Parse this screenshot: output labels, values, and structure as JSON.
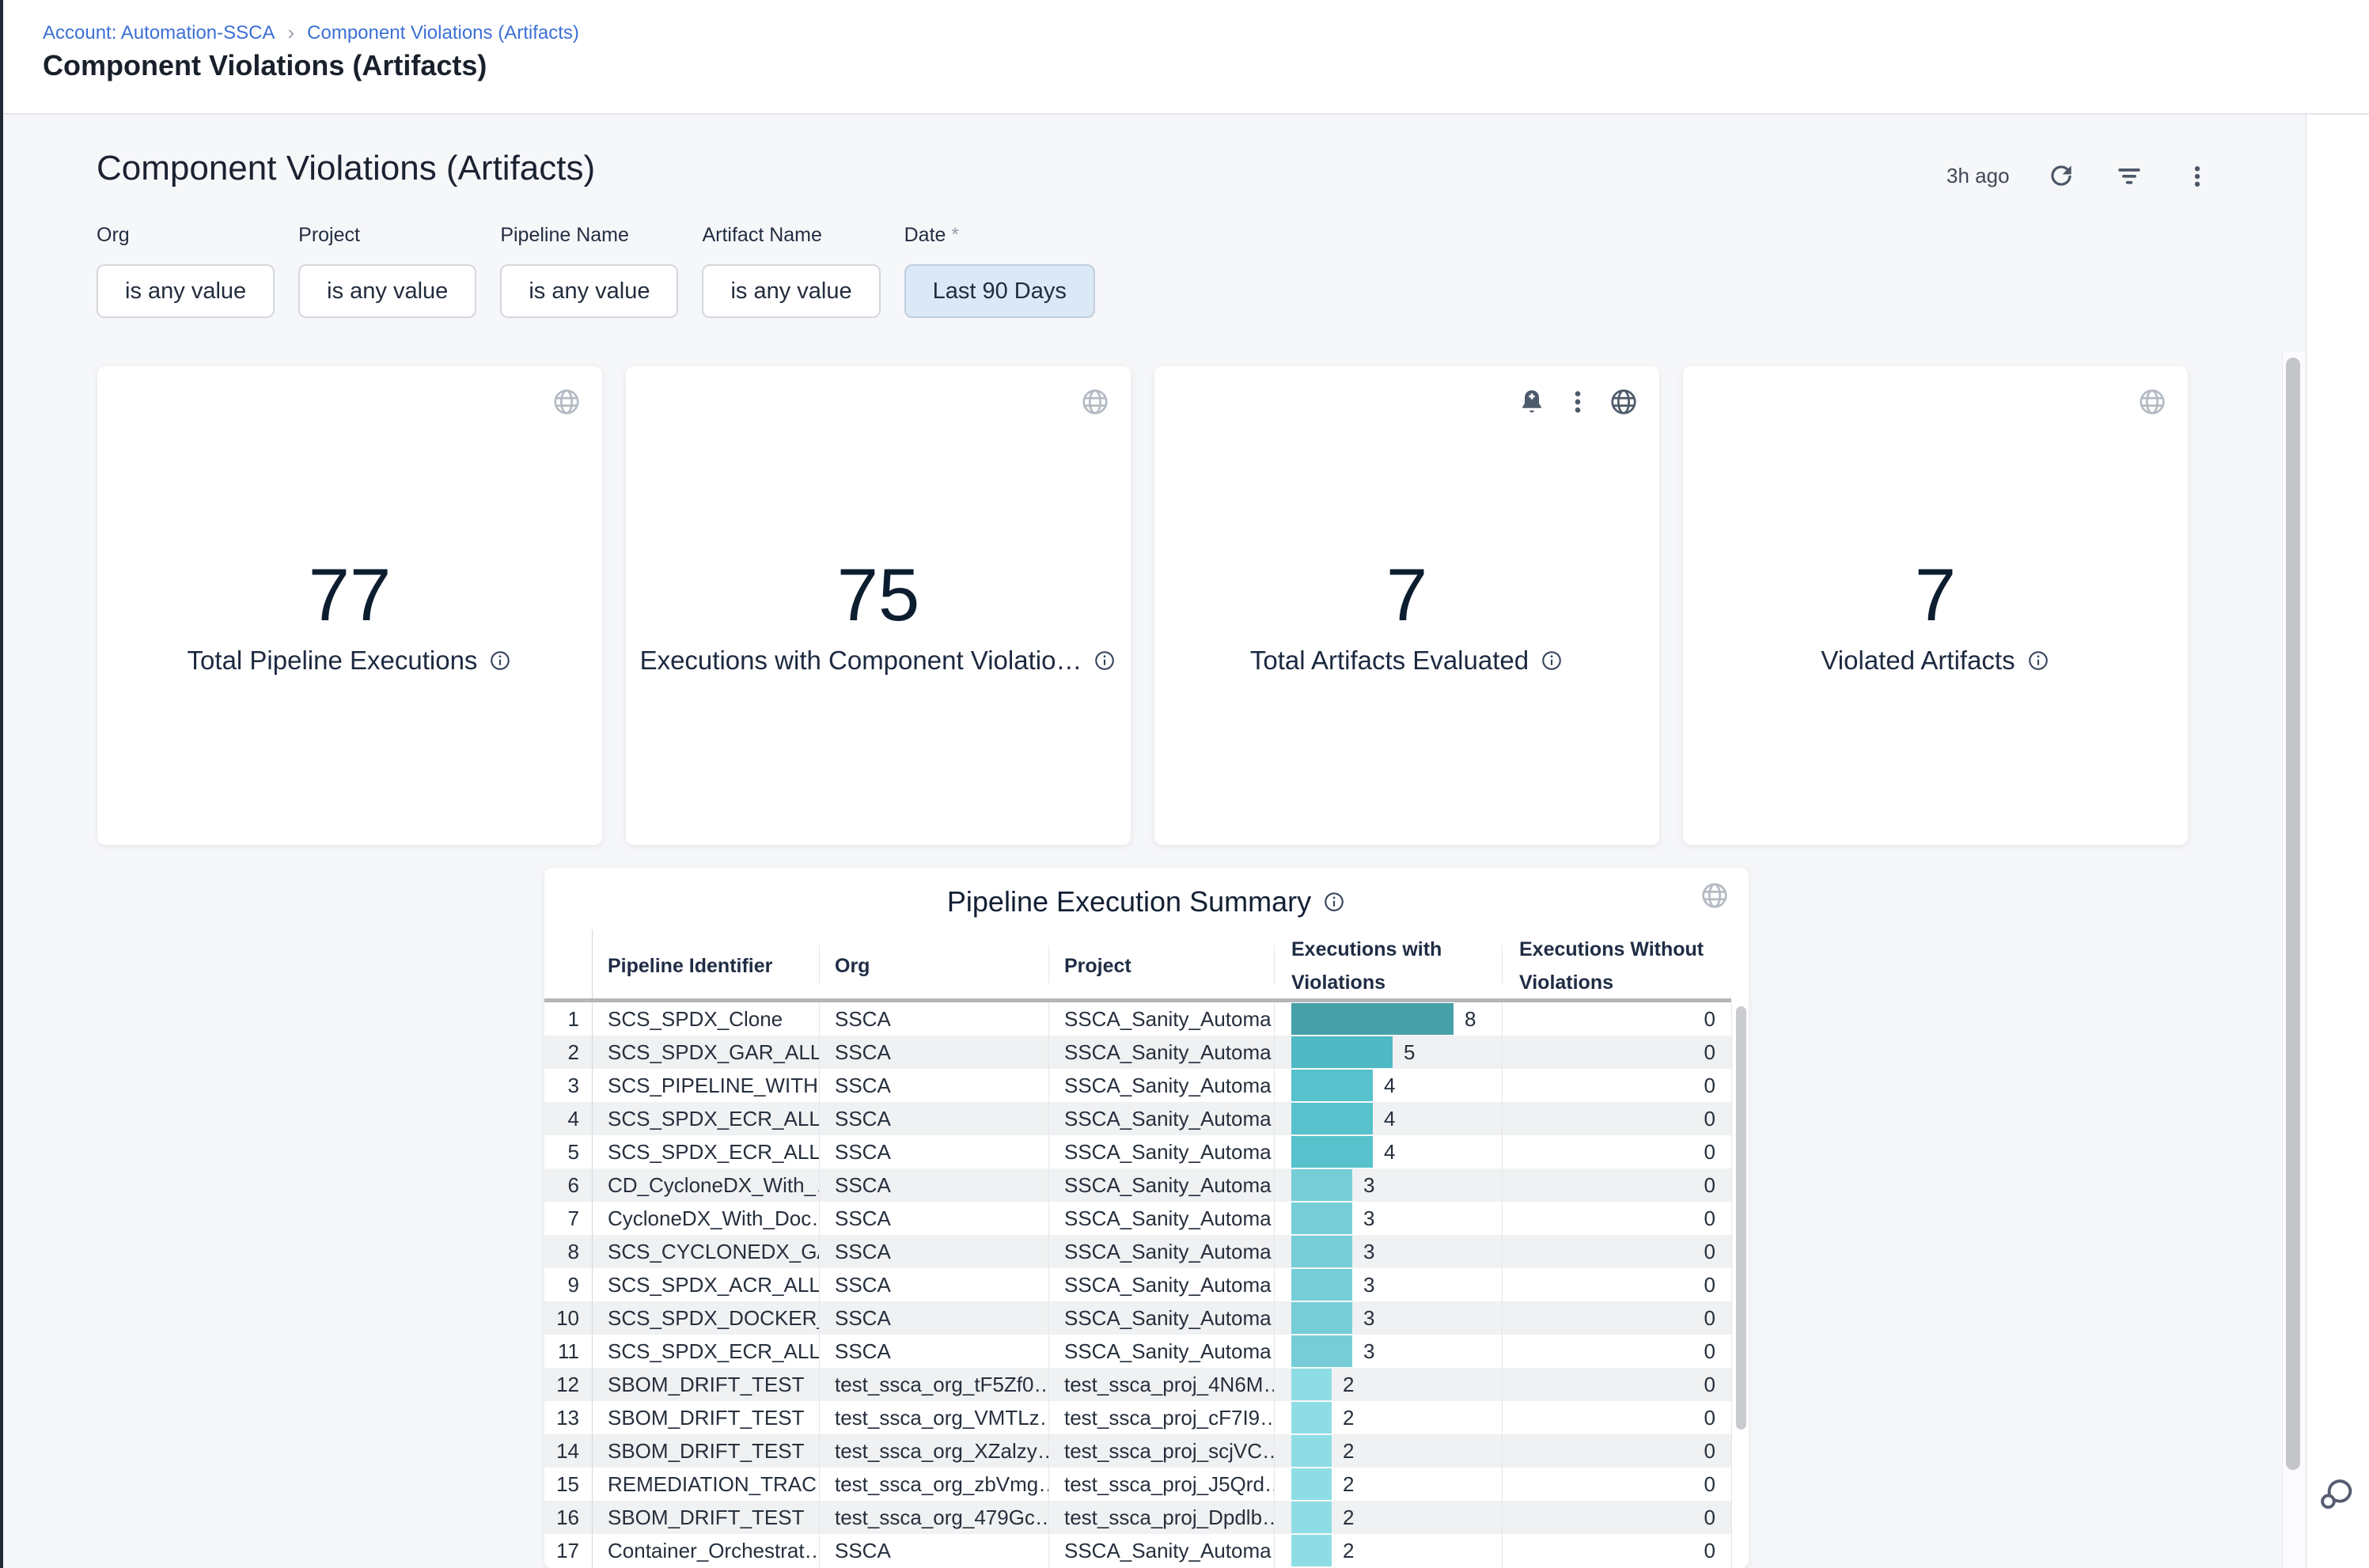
{
  "breadcrumb": {
    "account": "Account: Automation-SSCA",
    "page": "Component Violations (Artifacts)"
  },
  "page_title": "Component Violations (Artifacts)",
  "dashboard": {
    "title": "Component Violations (Artifacts)",
    "last_refreshed": "3h ago",
    "filters": [
      {
        "label": "Org",
        "value": "is any value",
        "required": false,
        "active": false
      },
      {
        "label": "Project",
        "value": "is any value",
        "required": false,
        "active": false
      },
      {
        "label": "Pipeline Name",
        "value": "is any value",
        "required": false,
        "active": false
      },
      {
        "label": "Artifact Name",
        "value": "is any value",
        "required": false,
        "active": false
      },
      {
        "label": "Date",
        "value": "Last 90 Days",
        "required": true,
        "active": true
      }
    ],
    "kpis": [
      {
        "value": "77",
        "label": "Total Pipeline Executions",
        "extra_icons": false
      },
      {
        "value": "75",
        "label": "Executions with Component Violatio…",
        "extra_icons": false
      },
      {
        "value": "7",
        "label": "Total Artifacts Evaluated",
        "extra_icons": true
      },
      {
        "value": "7",
        "label": "Violated Artifacts",
        "extra_icons": false
      }
    ]
  },
  "table": {
    "title": "Pipeline Execution Summary",
    "columns": [
      "Pipeline Identifier",
      "Org",
      "Project",
      "Executions with Violations",
      "Executions Without Violations"
    ],
    "bar_colors": {
      "8": "#46a0a8",
      "5": "#4fb9c4",
      "4": "#57c2cc",
      "3": "#76cdd7",
      "2": "#8fdde4"
    },
    "bar_max": 8,
    "bar_max_width": 205,
    "rows": [
      {
        "pipeline": "SCS_SPDX_Clone",
        "org": "SSCA",
        "project": "SSCA_Sanity_Automa…",
        "with": 8,
        "without": 0
      },
      {
        "pipeline": "SCS_SPDX_GAR_ALL…",
        "org": "SSCA",
        "project": "SSCA_Sanity_Automa…",
        "with": 5,
        "without": 0
      },
      {
        "pipeline": "SCS_PIPELINE_WITH…",
        "org": "SSCA",
        "project": "SSCA_Sanity_Automa…",
        "with": 4,
        "without": 0
      },
      {
        "pipeline": "SCS_SPDX_ECR_ALL_…",
        "org": "SSCA",
        "project": "SSCA_Sanity_Automa…",
        "with": 4,
        "without": 0
      },
      {
        "pipeline": "SCS_SPDX_ECR_ALL_…",
        "org": "SSCA",
        "project": "SSCA_Sanity_Automa…",
        "with": 4,
        "without": 0
      },
      {
        "pipeline": "CD_CycloneDX_With_…",
        "org": "SSCA",
        "project": "SSCA_Sanity_Automa…",
        "with": 3,
        "without": 0
      },
      {
        "pipeline": "CycloneDX_With_Doc…",
        "org": "SSCA",
        "project": "SSCA_Sanity_Automa…",
        "with": 3,
        "without": 0
      },
      {
        "pipeline": "SCS_CYCLONEDX_GA…",
        "org": "SSCA",
        "project": "SSCA_Sanity_Automa…",
        "with": 3,
        "without": 0
      },
      {
        "pipeline": "SCS_SPDX_ACR_ALL…",
        "org": "SSCA",
        "project": "SSCA_Sanity_Automa…",
        "with": 3,
        "without": 0
      },
      {
        "pipeline": "SCS_SPDX_DOCKER_…",
        "org": "SSCA",
        "project": "SSCA_Sanity_Automa…",
        "with": 3,
        "without": 0
      },
      {
        "pipeline": "SCS_SPDX_ECR_ALL_…",
        "org": "SSCA",
        "project": "SSCA_Sanity_Automa…",
        "with": 3,
        "without": 0
      },
      {
        "pipeline": "SBOM_DRIFT_TEST",
        "org": "test_ssca_org_tF5Zf0…",
        "project": "test_ssca_proj_4N6M…",
        "with": 2,
        "without": 0
      },
      {
        "pipeline": "SBOM_DRIFT_TEST",
        "org": "test_ssca_org_VMTLz…",
        "project": "test_ssca_proj_cF7I9…",
        "with": 2,
        "without": 0
      },
      {
        "pipeline": "SBOM_DRIFT_TEST",
        "org": "test_ssca_org_XZalzy…",
        "project": "test_ssca_proj_scjVC…",
        "with": 2,
        "without": 0
      },
      {
        "pipeline": "REMEDIATION_TRAC…",
        "org": "test_ssca_org_zbVmg…",
        "project": "test_ssca_proj_J5Qrd…",
        "with": 2,
        "without": 0
      },
      {
        "pipeline": "SBOM_DRIFT_TEST",
        "org": "test_ssca_org_479Gc…",
        "project": "test_ssca_proj_Dpdlb…",
        "with": 2,
        "without": 0
      },
      {
        "pipeline": "Container_Orchestrat…",
        "org": "SSCA",
        "project": "SSCA_Sanity_Automa…",
        "with": 2,
        "without": 0
      }
    ]
  },
  "colors": {
    "link_blue": "#3c70d6",
    "active_filter_bg": "#dbe9f7",
    "panel_bg": "#f6f7f9"
  }
}
